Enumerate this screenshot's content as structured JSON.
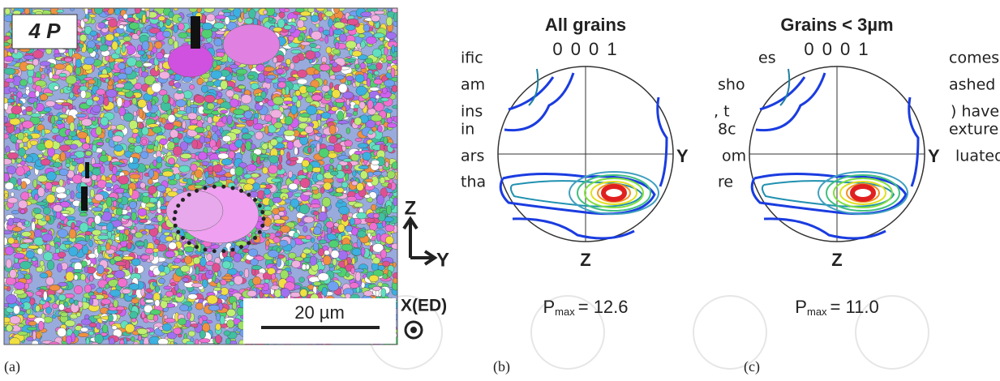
{
  "figure": {
    "panel_a": {
      "label": "(a)",
      "sample": "4 P",
      "scale_bar": "20 µm",
      "axis_z": "Z",
      "axis_y": "Y",
      "axis_x": "X(ED)"
    },
    "panel_b": {
      "label": "(b)",
      "title": "All grains",
      "pole": "0 0 0 1",
      "axis_y": "Y",
      "axis_z": "Z",
      "p": "P",
      "p_sub": "max",
      "p_value": "= 12.6"
    },
    "panel_c": {
      "label": "(c)",
      "title": "Grains < 3µm",
      "pole": "0 0 0 1",
      "axis_y": "Y",
      "axis_z": "Z",
      "p": "P",
      "p_sub": "max",
      "p_value": "= 11.0"
    }
  },
  "background_text": [
    "ific",
    "es",
    "comes",
    "am",
    "sho",
    "ashed",
    "ins",
    ", t",
    ") have",
    "in",
    "8c",
    "exture",
    "ars",
    "om",
    "luated",
    "tha",
    "re"
  ]
}
